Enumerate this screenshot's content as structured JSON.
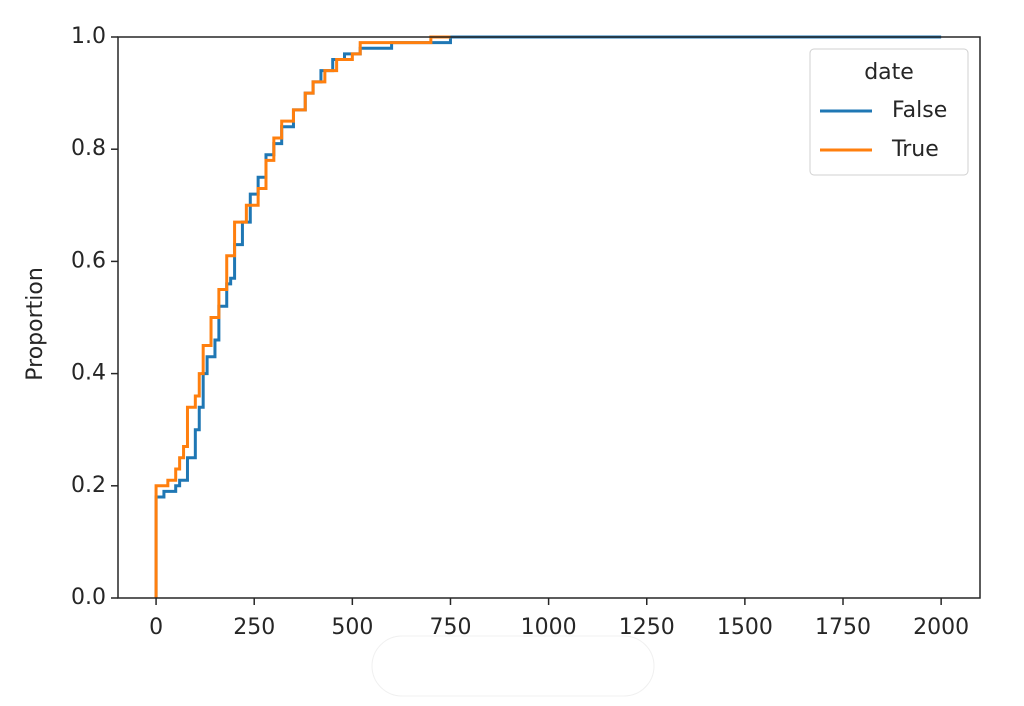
{
  "chart_data": {
    "type": "ecdf",
    "drawstyle": "steps-post",
    "ylabel": "Proportion",
    "xlim": [
      -97,
      2099
    ],
    "ylim": [
      0,
      1
    ],
    "xticks": [
      0,
      250,
      500,
      750,
      1000,
      1250,
      1500,
      1750,
      2000
    ],
    "yticks": [
      {
        "value": 0,
        "label": "0.0"
      },
      0.2,
      0.4,
      0.6,
      0.8,
      {
        "value": 1,
        "label": "1.0"
      }
    ],
    "legend_title": "date",
    "legend_loc": "upper right",
    "series": [
      {
        "name": "False",
        "color": "#1f77b4",
        "x": [
          0,
          0,
          20,
          50,
          60,
          80,
          100,
          110,
          120,
          130,
          150,
          160,
          180,
          190,
          200,
          220,
          240,
          260,
          280,
          300,
          320,
          350,
          380,
          400,
          420,
          450,
          480,
          520,
          600,
          750,
          2000
        ],
        "values": [
          0,
          0.18,
          0.19,
          0.2,
          0.21,
          0.25,
          0.3,
          0.34,
          0.4,
          0.43,
          0.46,
          0.52,
          0.56,
          0.57,
          0.63,
          0.67,
          0.72,
          0.75,
          0.79,
          0.81,
          0.84,
          0.87,
          0.9,
          0.92,
          0.94,
          0.96,
          0.97,
          0.98,
          0.99,
          1,
          1
        ]
      },
      {
        "name": "True",
        "color": "#ff7f0e",
        "x": [
          0,
          0,
          30,
          50,
          60,
          70,
          80,
          100,
          110,
          120,
          140,
          160,
          180,
          200,
          230,
          260,
          280,
          300,
          320,
          350,
          380,
          400,
          430,
          460,
          500,
          520,
          700,
          750
        ],
        "values": [
          0,
          0.2,
          0.21,
          0.23,
          0.25,
          0.27,
          0.34,
          0.36,
          0.4,
          0.45,
          0.5,
          0.55,
          0.61,
          0.67,
          0.7,
          0.73,
          0.78,
          0.82,
          0.85,
          0.87,
          0.9,
          0.92,
          0.94,
          0.96,
          0.97,
          0.99,
          1,
          1
        ]
      }
    ]
  }
}
